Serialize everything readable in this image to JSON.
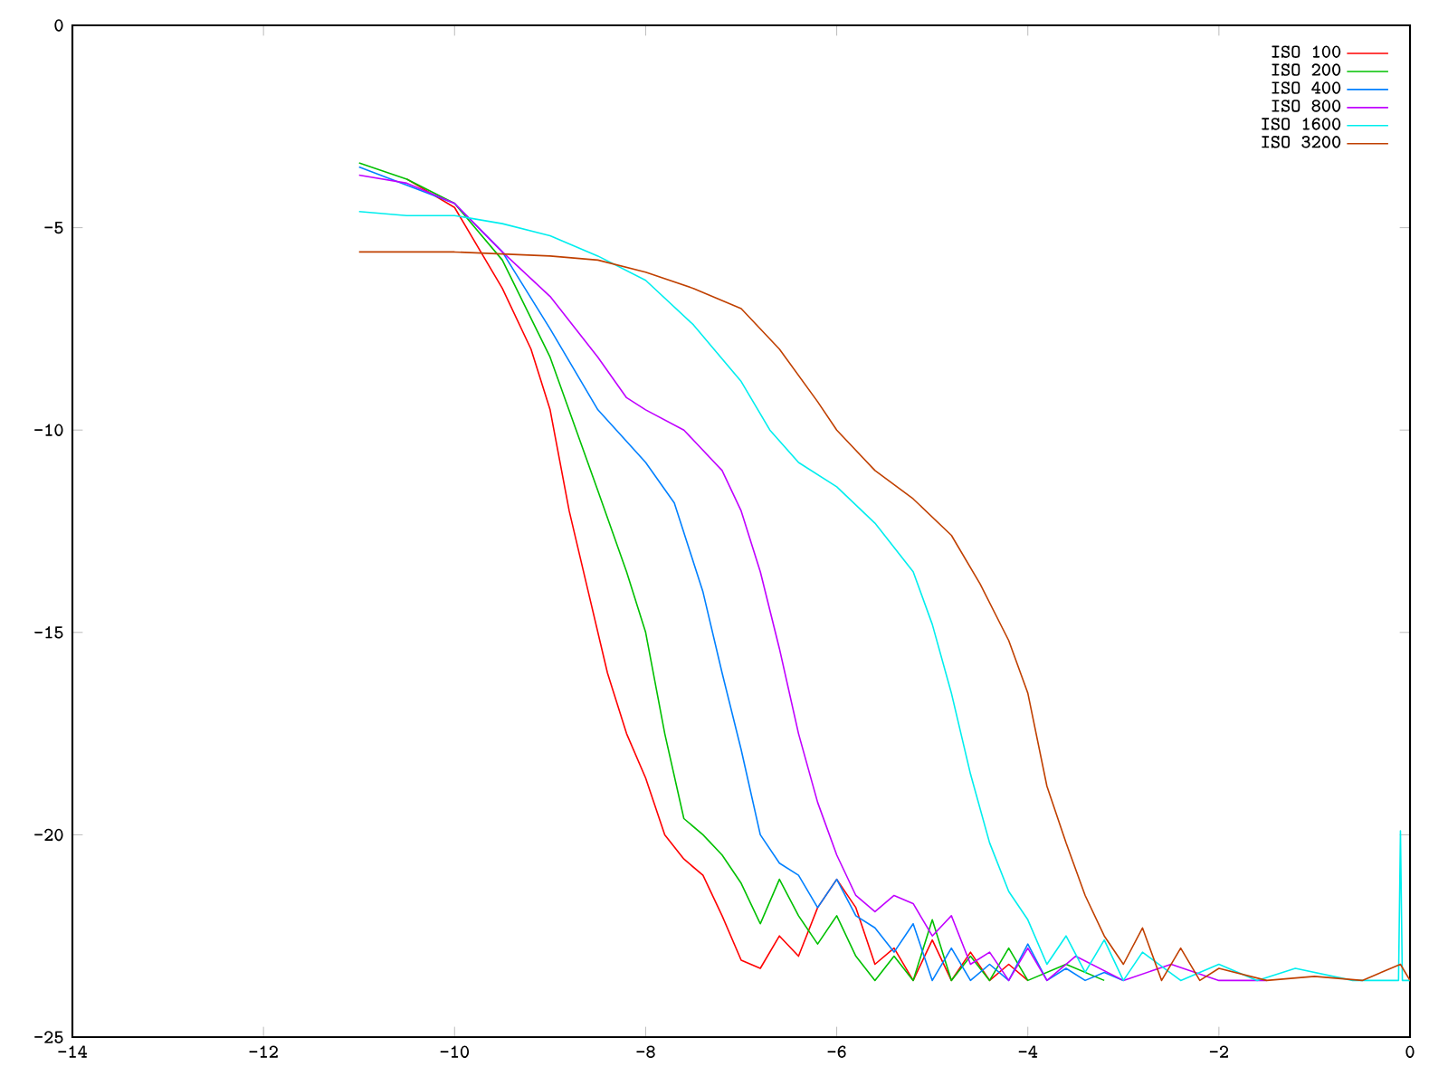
{
  "chart_data": {
    "type": "line",
    "xlim": [
      -14,
      0
    ],
    "ylim": [
      -25,
      0
    ],
    "xticks": [
      -14,
      -12,
      -10,
      -8,
      -6,
      -4,
      -2,
      0
    ],
    "yticks": [
      -25,
      -20,
      -15,
      -10,
      -5,
      0
    ],
    "grid": false,
    "legend": "top right",
    "marker": "none",
    "line_style": "solid",
    "series": [
      {
        "name": "ISO 100",
        "color": "#ff0000",
        "x": [
          -10.5,
          -10,
          -9.5,
          -9.2,
          -9,
          -8.8,
          -8.6,
          -8.4,
          -8.2,
          -8,
          -7.8,
          -7.6,
          -7.4,
          -7.2,
          -7,
          -6.8,
          -6.6,
          -6.4,
          -6.2,
          -6,
          -5.8,
          -5.6,
          -5.4,
          -5.2,
          -5,
          -4.8,
          -4.6,
          -4.4,
          -4.2,
          -4
        ],
        "values": [
          -3.8,
          -4.5,
          -6.5,
          -8,
          -9.5,
          -12,
          -14,
          -16,
          -17.5,
          -18.6,
          -20,
          -20.6,
          -21,
          -22,
          -23.1,
          -23.3,
          -22.5,
          -23,
          -21.8,
          -21.1,
          -21.8,
          -23.2,
          -22.8,
          -23.6,
          -22.6,
          -23.6,
          -22.9,
          -23.6,
          -23.2,
          -23.6
        ]
      },
      {
        "name": "ISO 200",
        "color": "#00c000",
        "x": [
          -11,
          -10.5,
          -10,
          -9.5,
          -9,
          -8.5,
          -8.2,
          -8,
          -7.8,
          -7.6,
          -7.4,
          -7.2,
          -7,
          -6.8,
          -6.6,
          -6.4,
          -6.2,
          -6,
          -5.8,
          -5.6,
          -5.4,
          -5.2,
          -5,
          -4.8,
          -4.6,
          -4.4,
          -4.2,
          -4,
          -3.6,
          -3.2
        ],
        "values": [
          -3.4,
          -3.8,
          -4.4,
          -5.8,
          -8.2,
          -11.5,
          -13.5,
          -15,
          -17.5,
          -19.6,
          -20,
          -20.5,
          -21.2,
          -22.2,
          -21.1,
          -22,
          -22.7,
          -22,
          -23,
          -23.6,
          -23,
          -23.6,
          -22.1,
          -23.6,
          -23,
          -23.6,
          -22.8,
          -23.6,
          -23.2,
          -23.6
        ]
      },
      {
        "name": "ISO 400",
        "color": "#0080ff",
        "x": [
          -11,
          -10,
          -9.5,
          -9,
          -8.5,
          -8,
          -7.7,
          -7.4,
          -7.2,
          -7,
          -6.8,
          -6.6,
          -6.4,
          -6.2,
          -6,
          -5.8,
          -5.6,
          -5.4,
          -5.2,
          -5,
          -4.8,
          -4.6,
          -4.4,
          -4.2,
          -4,
          -3.8,
          -3.6,
          -3.4,
          -3.2,
          -3
        ],
        "values": [
          -3.5,
          -4.4,
          -5.6,
          -7.5,
          -9.5,
          -10.8,
          -11.8,
          -14,
          -16,
          -17.9,
          -20,
          -20.7,
          -21,
          -21.8,
          -21.1,
          -22,
          -22.3,
          -22.9,
          -22.2,
          -23.6,
          -22.8,
          -23.6,
          -23.2,
          -23.6,
          -22.7,
          -23.6,
          -23.3,
          -23.6,
          -23.4,
          -23.6
        ]
      },
      {
        "name": "ISO 800",
        "color": "#c000ff",
        "x": [
          -11,
          -10.5,
          -10,
          -9.5,
          -9,
          -8.5,
          -8.2,
          -8,
          -7.6,
          -7.2,
          -7,
          -6.8,
          -6.6,
          -6.4,
          -6.2,
          -6,
          -5.8,
          -5.6,
          -5.4,
          -5.2,
          -5,
          -4.8,
          -4.6,
          -4.4,
          -4.2,
          -4,
          -3.8,
          -3.5,
          -3,
          -2.5,
          -2,
          -1.5
        ],
        "values": [
          -3.7,
          -3.9,
          -4.4,
          -5.6,
          -6.7,
          -8.2,
          -9.2,
          -9.5,
          -10,
          -11,
          -12,
          -13.5,
          -15.4,
          -17.5,
          -19.2,
          -20.5,
          -21.5,
          -21.9,
          -21.5,
          -21.7,
          -22.5,
          -22,
          -23.2,
          -22.9,
          -23.6,
          -22.8,
          -23.6,
          -23,
          -23.6,
          -23.2,
          -23.6,
          -23.6
        ]
      },
      {
        "name": "ISO 1600",
        "color": "#00eeee",
        "x": [
          -11,
          -10.5,
          -10,
          -9.5,
          -9,
          -8.5,
          -8,
          -7.5,
          -7,
          -6.7,
          -6.4,
          -6,
          -5.6,
          -5.2,
          -5,
          -4.8,
          -4.6,
          -4.4,
          -4.2,
          -4,
          -3.8,
          -3.6,
          -3.4,
          -3.2,
          -3,
          -2.8,
          -2.4,
          -2,
          -1.6,
          -1.2,
          -0.6,
          -0.12,
          -0.1,
          -0.08,
          0
        ],
        "values": [
          -4.6,
          -4.7,
          -4.7,
          -4.9,
          -5.2,
          -5.7,
          -6.3,
          -7.4,
          -8.8,
          -10,
          -10.8,
          -11.4,
          -12.3,
          -13.5,
          -14.8,
          -16.5,
          -18.5,
          -20.2,
          -21.4,
          -22.1,
          -23.2,
          -22.5,
          -23.4,
          -22.6,
          -23.6,
          -22.9,
          -23.6,
          -23.2,
          -23.6,
          -23.3,
          -23.6,
          -23.6,
          -19.9,
          -23.6,
          -23.6
        ]
      },
      {
        "name": "ISO 3200",
        "color": "#c04000",
        "x": [
          -11,
          -10,
          -9,
          -8.5,
          -8,
          -7.5,
          -7,
          -6.6,
          -6.2,
          -6,
          -5.6,
          -5.2,
          -4.8,
          -4.5,
          -4.2,
          -4,
          -3.8,
          -3.6,
          -3.4,
          -3.2,
          -3,
          -2.8,
          -2.6,
          -2.4,
          -2.2,
          -2,
          -1.5,
          -1,
          -0.5,
          -0.1,
          0
        ],
        "values": [
          -5.6,
          -5.6,
          -5.7,
          -5.8,
          -6.1,
          -6.5,
          -7,
          -8,
          -9.3,
          -10,
          -11,
          -11.7,
          -12.6,
          -13.8,
          -15.2,
          -16.5,
          -18.8,
          -20.2,
          -21.5,
          -22.5,
          -23.2,
          -22.3,
          -23.6,
          -22.8,
          -23.6,
          -23.3,
          -23.6,
          -23.5,
          -23.6,
          -23.2,
          -23.6
        ]
      }
    ]
  }
}
